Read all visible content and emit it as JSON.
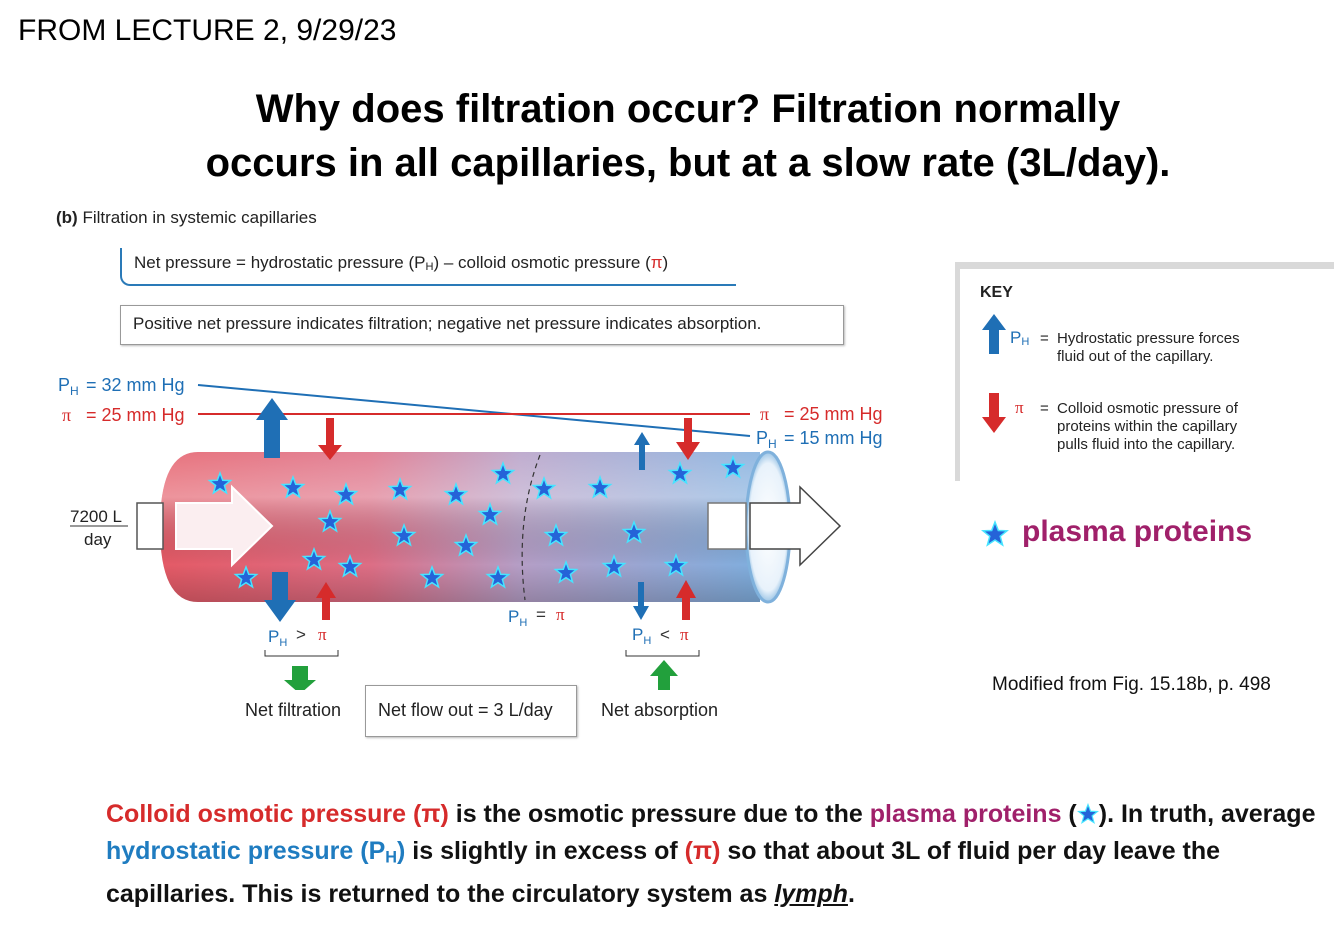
{
  "header": "FROM LECTURE 2, 9/29/23",
  "title": {
    "line1": "Why does filtration occur?  Filtration normally",
    "line2": "occurs in all capillaries, but at a slow rate (3L/day)."
  },
  "figure": {
    "label_prefix": "(b)",
    "label": "Filtration in systemic capillaries",
    "net_pressure_a": "Net pressure = hydrostatic pressure (P",
    "net_pressure_sub": "H",
    "net_pressure_b": ") – colloid osmotic pressure (",
    "net_pressure_pi": "π",
    "net_pressure_c": ")",
    "positive_negative": "Positive net pressure indicates filtration; negative net pressure indicates absorption.",
    "ph_left": "= 32 mm Hg",
    "pi_left": "= 25 mm Hg",
    "pi_right": "= 25 mm Hg",
    "ph_right": "= 15 mm Hg",
    "inflow_top": "7200 L",
    "inflow_bottom": "day",
    "ph_gt_pi": ">",
    "ph_eq_pi": "=",
    "ph_lt_pi": "<",
    "net_filtration": "Net filtration",
    "net_flow_out": "Net flow out = 3 L/day",
    "net_absorption": "Net absorption"
  },
  "key": {
    "title": "KEY",
    "ph_desc_1": "Hydrostatic pressure forces",
    "ph_desc_2": "fluid out of the capillary.",
    "pi_desc_1": "Colloid osmotic pressure of",
    "pi_desc_2": "proteins within the capillary",
    "pi_desc_3": "pulls fluid into the capillary.",
    "eq": "="
  },
  "plasma_label": "plasma proteins",
  "source": "Modified from Fig. 15.18b, p. 498",
  "bottom_text": {
    "colloid": "Colloid osmotic pressure (π)",
    "t1": " is the osmotic pressure due to the ",
    "plasma": "plasma proteins",
    "t2": " (",
    "t3": ").  In truth, average ",
    "hydro": "hydrostatic pressure (P",
    "hydro_sub": "H",
    "hydro_end": ")",
    "t4": " is slightly in excess of ",
    "pi": "(π)",
    "t5": " so that about 3L of fluid per day leave the capillaries.  This is returned to the circulatory system as ",
    "lymph": "lymph",
    "t6": "."
  },
  "colors": {
    "hydrostatic": "#1f6fb5",
    "colloid": "#d62b2b",
    "filtration_arrow": "#22a03c",
    "plasma_protein": "#a0206a"
  }
}
